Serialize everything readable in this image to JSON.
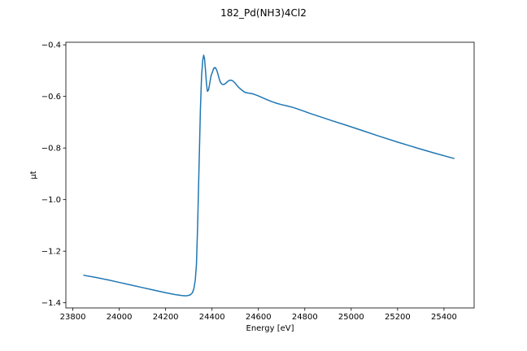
{
  "chart_data": {
    "type": "line",
    "title": "182_Pd(NH3)4Cl2",
    "xlabel": "Energy [eV]",
    "ylabel": "μt",
    "xlim": [
      23770,
      25530
    ],
    "ylim": [
      -1.42,
      -0.39
    ],
    "x_ticks": [
      23800,
      24000,
      24200,
      24400,
      24600,
      24800,
      25000,
      25200,
      25400
    ],
    "y_ticks": [
      -1.4,
      -1.2,
      -1.0,
      -0.8,
      -0.6,
      -0.4
    ],
    "x_tick_labels": [
      "23800",
      "24000",
      "24200",
      "24400",
      "24600",
      "24800",
      "25000",
      "25200",
      "25400"
    ],
    "y_tick_labels": [
      "−1.4",
      "−1.2",
      "−1.0",
      "−0.8",
      "−0.6",
      "−0.4"
    ],
    "grid": false,
    "colors": {
      "line": "#1f77b4"
    },
    "series": [
      {
        "x": [
          23845,
          23900,
          23950,
          24000,
          24050,
          24100,
          24150,
          24200,
          24240,
          24270,
          24290,
          24305,
          24315,
          24322,
          24328,
          24333,
          24338,
          24342,
          24346,
          24350,
          24355,
          24360,
          24364,
          24368,
          24372,
          24376,
          24380,
          24385,
          24390,
          24396,
          24402,
          24408,
          24414,
          24420,
          24426,
          24432,
          24438,
          24444,
          24450,
          24458,
          24466,
          24474,
          24482,
          24490,
          24498,
          24506,
          24515,
          24525,
          24535,
          24545,
          24555,
          24565,
          24575,
          24585,
          24600,
          24620,
          24640,
          24660,
          24680,
          24700,
          24720,
          24750,
          24780,
          24820,
          24870,
          24920,
          24980,
          25050,
          25120,
          25200,
          25280,
          25360,
          25445
        ],
        "y": [
          -1.293,
          -1.302,
          -1.311,
          -1.321,
          -1.331,
          -1.341,
          -1.351,
          -1.361,
          -1.368,
          -1.372,
          -1.373,
          -1.37,
          -1.362,
          -1.345,
          -1.31,
          -1.25,
          -1.1,
          -0.95,
          -0.8,
          -0.65,
          -0.52,
          -0.46,
          -0.44,
          -0.455,
          -0.5,
          -0.55,
          -0.58,
          -0.575,
          -0.55,
          -0.52,
          -0.505,
          -0.49,
          -0.488,
          -0.497,
          -0.515,
          -0.535,
          -0.548,
          -0.553,
          -0.554,
          -0.55,
          -0.543,
          -0.538,
          -0.537,
          -0.54,
          -0.547,
          -0.556,
          -0.565,
          -0.573,
          -0.58,
          -0.585,
          -0.587,
          -0.588,
          -0.59,
          -0.593,
          -0.598,
          -0.606,
          -0.614,
          -0.621,
          -0.627,
          -0.632,
          -0.636,
          -0.643,
          -0.652,
          -0.665,
          -0.68,
          -0.695,
          -0.712,
          -0.733,
          -0.754,
          -0.777,
          -0.799,
          -0.82,
          -0.841
        ]
      }
    ]
  }
}
